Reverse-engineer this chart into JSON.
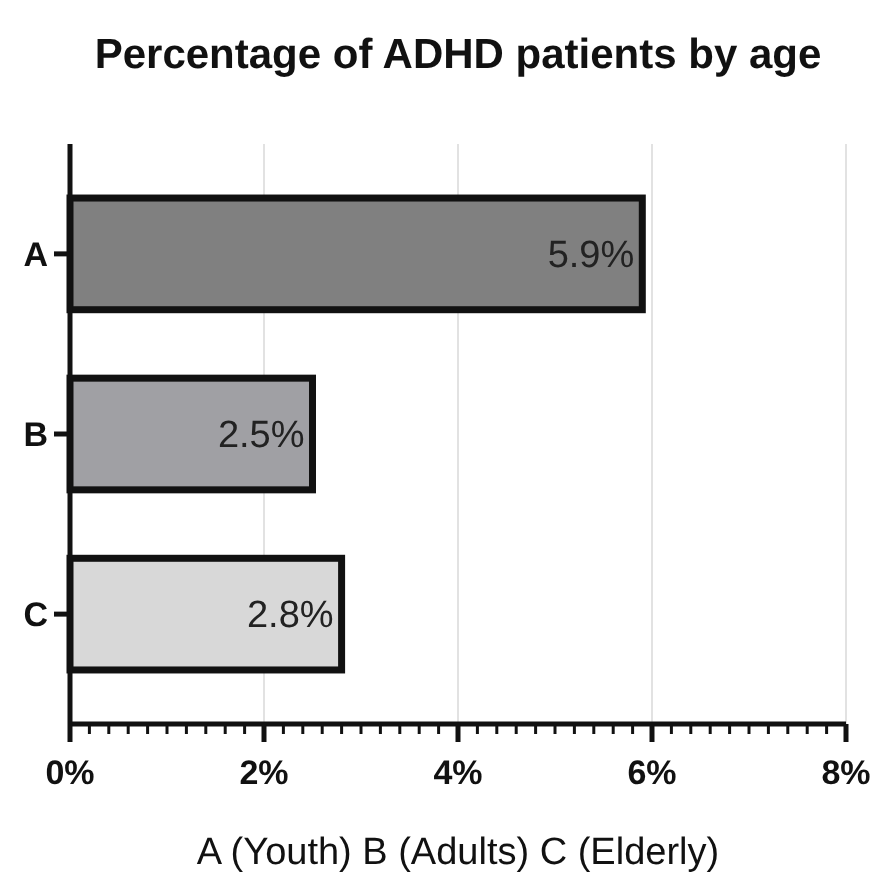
{
  "chart_data": {
    "type": "bar",
    "orientation": "horizontal",
    "title": "Percentage of ADHD patients by age",
    "xlabel": "A (Youth) B (Adults) C (Elderly)",
    "categories": [
      "A",
      "B",
      "C"
    ],
    "values": [
      5.9,
      2.5,
      2.8
    ],
    "colors": [
      "#808080",
      "#a0a0a4",
      "#d8d8d8"
    ],
    "value_labels": [
      "5.9%",
      "2.5%",
      "2.8%"
    ],
    "xlim": [
      0,
      8
    ],
    "xticks": [
      {
        "value": 0,
        "label": "0%"
      },
      {
        "value": 0.2,
        "label": null
      },
      {
        "value": 0.4,
        "label": null
      },
      {
        "value": 0.6,
        "label": null
      },
      {
        "value": 0.8,
        "label": null
      },
      {
        "value": 1,
        "label": null
      },
      {
        "value": 1.2,
        "label": null
      },
      {
        "value": 1.4,
        "label": null
      },
      {
        "value": 1.6,
        "label": null
      },
      {
        "value": 1.8,
        "label": null
      },
      {
        "value": 2,
        "label": "2%"
      },
      {
        "value": 2.2,
        "label": null
      },
      {
        "value": 2.4,
        "label": null
      },
      {
        "value": 2.6,
        "label": null
      },
      {
        "value": 2.8,
        "label": null
      },
      {
        "value": 3,
        "label": null
      },
      {
        "value": 3.2,
        "label": null
      },
      {
        "value": 3.4,
        "label": null
      },
      {
        "value": 3.6,
        "label": null
      },
      {
        "value": 3.8,
        "label": null
      },
      {
        "value": 4,
        "label": "4%"
      },
      {
        "value": 4.2,
        "label": null
      },
      {
        "value": 4.4,
        "label": null
      },
      {
        "value": 4.6,
        "label": null
      },
      {
        "value": 4.8,
        "label": null
      },
      {
        "value": 5,
        "label": null
      },
      {
        "value": 5.2,
        "label": null
      },
      {
        "value": 5.4,
        "label": null
      },
      {
        "value": 5.6,
        "label": null
      },
      {
        "value": 5.8,
        "label": null
      },
      {
        "value": 6,
        "label": "6%"
      },
      {
        "value": 6.2,
        "label": null
      },
      {
        "value": 6.4,
        "label": null
      },
      {
        "value": 6.6,
        "label": null
      },
      {
        "value": 6.8,
        "label": null
      },
      {
        "value": 7,
        "label": null
      },
      {
        "value": 7.2,
        "label": null
      },
      {
        "value": 7.4,
        "label": null
      },
      {
        "value": 7.6,
        "label": null
      },
      {
        "value": 7.8,
        "label": null
      },
      {
        "value": 8,
        "label": "8%"
      }
    ],
    "grid": "x"
  }
}
